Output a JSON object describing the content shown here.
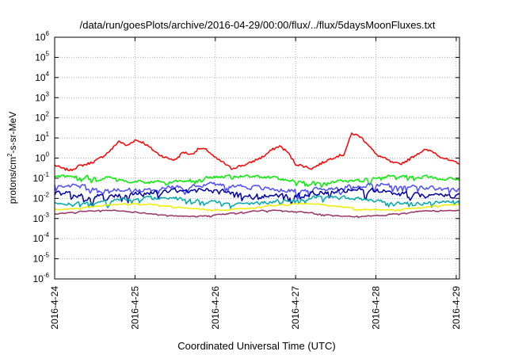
{
  "chart_data": {
    "type": "line",
    "title": "/data/run/goesPlots/archive/2016-04-29/00:00/flux/../flux/5daysMoonFluxes.txt",
    "xlabel": "Coordinated Universal Time (UTC)",
    "ylabel": {
      "pre": "protons/cm",
      "sup": "2",
      "post": "-s-sr-MeV"
    },
    "yscale": "log",
    "ylim_exp": [
      -6,
      6
    ],
    "ytick_exponents": [
      -6,
      -5,
      -4,
      -3,
      -2,
      -1,
      0,
      1,
      2,
      3,
      4,
      5,
      6
    ],
    "ytick_base": "10",
    "xlim": [
      "2016-04-24",
      "2016-04-29 01:00"
    ],
    "xticks": [
      "2016-4-24",
      "2016-4-25",
      "2016-4-26",
      "2016-4-27",
      "2016-4-28",
      "2016-4-29"
    ],
    "grid": true,
    "legend": "none",
    "series": [
      {
        "color": "#ff0000",
        "x_days": [
          0,
          0.1,
          0.2,
          0.3,
          0.4,
          0.5,
          0.6,
          0.7,
          0.8,
          0.9,
          1.0,
          1.1,
          1.2,
          1.3,
          1.4,
          1.5,
          1.6,
          1.7,
          1.8,
          1.9,
          2.0,
          2.1,
          2.2,
          2.3,
          2.4,
          2.5,
          2.6,
          2.7,
          2.8,
          2.9,
          3.0,
          3.1,
          3.2,
          3.3,
          3.4,
          3.5,
          3.6,
          3.7,
          3.8,
          3.9,
          4.0,
          4.1,
          4.2,
          4.3,
          4.4,
          4.5,
          4.6,
          4.7,
          4.8,
          4.9,
          5.04
        ],
        "y": [
          0.45,
          0.3,
          0.25,
          0.4,
          0.5,
          0.7,
          1.2,
          2.5,
          7,
          4,
          8,
          6,
          3,
          1.5,
          1.0,
          0.8,
          2,
          1.5,
          3,
          2.5,
          1.0,
          0.6,
          0.3,
          0.4,
          0.5,
          0.8,
          1.2,
          2.5,
          4,
          2,
          0.5,
          0.4,
          0.3,
          0.5,
          0.8,
          1.2,
          1.5,
          17,
          12,
          5,
          1.5,
          1.0,
          0.6,
          0.5,
          0.8,
          1.5,
          2.5,
          2.2,
          1.2,
          0.8,
          0.5
        ]
      },
      {
        "color": "#00ee00",
        "mean": 0.09,
        "amp": 0.8,
        "seed": 11
      },
      {
        "color": "#4d4dff",
        "mean": 0.035,
        "amp": 1.1,
        "seed": 23
      },
      {
        "color": "#0000aa",
        "mean": 0.018,
        "amp": 1.3,
        "seed": 37
      },
      {
        "color": "#00aaaa",
        "mean": 0.008,
        "amp": 0.8,
        "seed": 51
      },
      {
        "color": "#eeee00",
        "mean": 0.0038,
        "amp": 0.25,
        "seed": 67
      },
      {
        "color": "#993366",
        "mean": 0.0018,
        "amp": 0.25,
        "seed": 83
      }
    ]
  }
}
